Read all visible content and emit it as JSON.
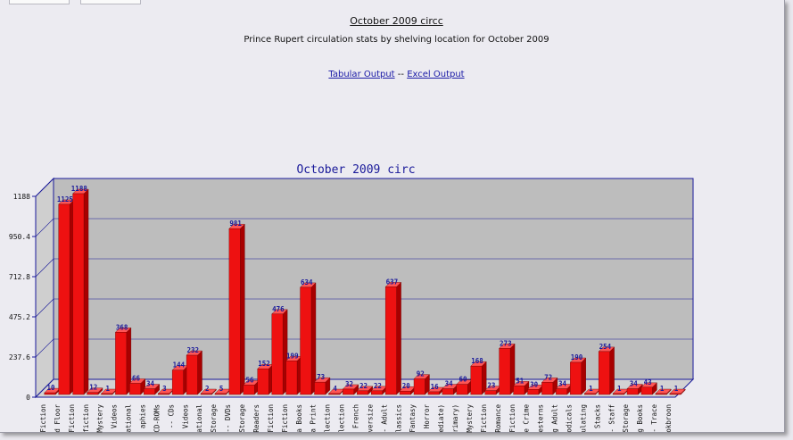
{
  "header": {
    "title": "October 2009 circc",
    "subtitle": "Prince Rupert circulation stats by shelving location for October 2009",
    "link_tabular": "Tabular Output",
    "separator": "--",
    "link_excel": "Excel Output"
  },
  "colors": {
    "bar": "#ee1111",
    "bar_top": "#ff5555",
    "bar_side": "#a80000",
    "axis": "#1a1a9a",
    "wall": "#bdbdbd",
    "floor": "#d2d2d2"
  },
  "chart_data": {
    "type": "bar",
    "title": "October 2009 circ",
    "yticks": [
      "0",
      "237.6",
      "475.2",
      "712.8",
      "950.4",
      "1188"
    ],
    "ylim": [
      0,
      1188
    ],
    "categories": [
      "Fiction",
      "d Floor",
      "Fiction",
      "fiction",
      "Mystery",
      "Videos",
      "ational",
      "aphies",
      "CD-ROMs",
      "-- CDs",
      "Videos",
      "ational",
      "Storage",
      "-- DVDs",
      "Storage",
      "Readers",
      "Fiction",
      "Fiction",
      "a Books",
      "a Print",
      "lection",
      "lection",
      "French",
      "versize",
      "- Adult",
      "lassics",
      "Fantasy",
      "Horror",
      "mediate)",
      "rimary)",
      "Mystery",
      "Fiction",
      "Romance",
      "Fiction",
      "e Crime",
      "esterns",
      "g Adult",
      "iodicals",
      "ulating",
      "Stacks",
      "- Staff",
      "Storage",
      "g Books",
      "- Trace",
      "okbroon"
    ],
    "values": [
      10,
      1125,
      1188,
      12,
      1,
      368,
      66,
      34,
      3,
      144,
      232,
      2,
      5,
      981,
      56,
      152,
      476,
      199,
      634,
      73,
      4,
      32,
      22,
      22,
      637,
      20,
      92,
      16,
      34,
      60,
      168,
      23,
      273,
      51,
      30,
      72,
      34,
      190,
      1,
      254,
      1,
      34,
      43,
      1,
      1
    ]
  }
}
